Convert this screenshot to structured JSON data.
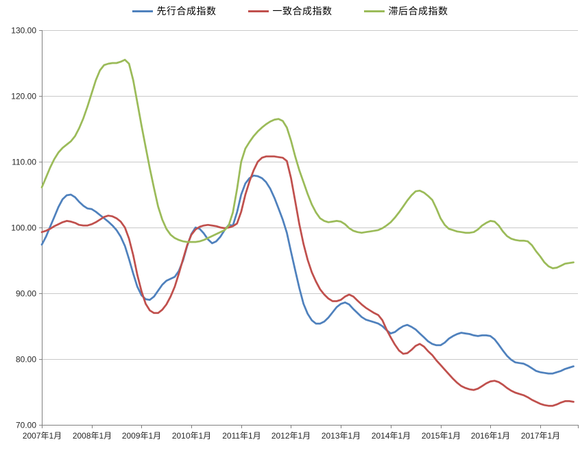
{
  "chart": {
    "title": "",
    "legend_position": "top"
  },
  "chart_data": {
    "type": "line",
    "title": "",
    "xlabel": "",
    "ylabel": "",
    "x_start": "2007-01",
    "x_end": "2017-09",
    "frequency": "monthly",
    "x_tick_labels": [
      "2007年1月",
      "2008年1月",
      "2009年1月",
      "2010年1月",
      "2011年1月",
      "2012年1月",
      "2013年1月",
      "2014年1月",
      "2015年1月",
      "2016年1月",
      "2017年1月"
    ],
    "y_tick_labels": [
      "130.00",
      "120.00",
      "110.00",
      "100.00",
      "90.00",
      "80.00",
      "70.00"
    ],
    "ylim": [
      70,
      130
    ],
    "y_step": 10,
    "grid": true,
    "legend_position": "top",
    "colors": {
      "leading": "#4F81BD",
      "coincident": "#C0504D",
      "lagging": "#9BBB59",
      "gridline": "#C9C9C9",
      "axis": "#808080",
      "text": "#262626"
    },
    "series": [
      {
        "name": "先行合成指数",
        "key": "leading",
        "color": "#4F81BD",
        "values": [
          97.4,
          98.6,
          100.1,
          101.6,
          103.1,
          104.3,
          104.9,
          105.0,
          104.6,
          103.9,
          103.3,
          102.9,
          102.8,
          102.4,
          101.9,
          101.4,
          100.9,
          100.3,
          99.6,
          98.6,
          97.2,
          95.2,
          93.0,
          91.0,
          89.7,
          89.1,
          89.0,
          89.5,
          90.4,
          91.3,
          91.9,
          92.2,
          92.5,
          93.4,
          95.0,
          97.2,
          99.0,
          100.0,
          99.8,
          99.1,
          98.2,
          97.6,
          97.9,
          98.6,
          99.6,
          100.4,
          100.3,
          102.3,
          105.0,
          106.7,
          107.5,
          107.9,
          107.8,
          107.5,
          106.9,
          105.9,
          104.5,
          102.9,
          101.2,
          99.2,
          96.3,
          93.5,
          90.8,
          88.4,
          86.9,
          85.9,
          85.4,
          85.4,
          85.7,
          86.3,
          87.1,
          87.9,
          88.4,
          88.6,
          88.3,
          87.6,
          87.0,
          86.4,
          86.0,
          85.8,
          85.6,
          85.4,
          85.0,
          84.4,
          83.9,
          84.1,
          84.6,
          85.0,
          85.2,
          84.9,
          84.5,
          83.9,
          83.3,
          82.7,
          82.3,
          82.1,
          82.1,
          82.5,
          83.1,
          83.5,
          83.8,
          84.0,
          83.9,
          83.8,
          83.6,
          83.5,
          83.6,
          83.6,
          83.5,
          83.0,
          82.2,
          81.3,
          80.5,
          79.9,
          79.5,
          79.4,
          79.3,
          79.0,
          78.6,
          78.2,
          78.0,
          77.9,
          77.8,
          77.8,
          78.0,
          78.2,
          78.5,
          78.7,
          78.9
        ]
      },
      {
        "name": "一致合成指数",
        "key": "coincident",
        "color": "#C0504D",
        "values": [
          99.3,
          99.5,
          99.8,
          100.2,
          100.5,
          100.8,
          101.0,
          100.9,
          100.7,
          100.4,
          100.3,
          100.3,
          100.5,
          100.8,
          101.2,
          101.6,
          101.8,
          101.7,
          101.4,
          100.9,
          100.0,
          98.3,
          95.8,
          92.8,
          90.3,
          88.4,
          87.4,
          87.0,
          87.0,
          87.5,
          88.3,
          89.5,
          91.0,
          93.0,
          95.2,
          97.3,
          98.9,
          99.7,
          100.1,
          100.3,
          100.4,
          100.3,
          100.2,
          100.0,
          99.9,
          100.0,
          100.2,
          100.6,
          102.4,
          105.0,
          107.0,
          108.7,
          110.0,
          110.6,
          110.8,
          110.8,
          110.8,
          110.7,
          110.6,
          110.1,
          107.5,
          104.0,
          100.5,
          97.5,
          95.1,
          93.2,
          91.8,
          90.6,
          89.8,
          89.2,
          88.8,
          88.8,
          89.0,
          89.5,
          89.8,
          89.5,
          88.9,
          88.3,
          87.8,
          87.4,
          87.0,
          86.7,
          85.9,
          84.5,
          83.3,
          82.2,
          81.3,
          80.8,
          80.9,
          81.4,
          82.0,
          82.3,
          81.9,
          81.2,
          80.6,
          79.8,
          79.1,
          78.4,
          77.7,
          77.0,
          76.4,
          75.9,
          75.6,
          75.4,
          75.3,
          75.5,
          75.9,
          76.3,
          76.6,
          76.7,
          76.5,
          76.1,
          75.6,
          75.2,
          74.9,
          74.7,
          74.5,
          74.2,
          73.8,
          73.5,
          73.2,
          73.0,
          72.9,
          72.9,
          73.1,
          73.4,
          73.6,
          73.6,
          73.5
        ]
      },
      {
        "name": "滞后合成指数",
        "key": "lagging",
        "color": "#9BBB59",
        "values": [
          106.1,
          107.6,
          109.1,
          110.4,
          111.4,
          112.1,
          112.6,
          113.1,
          113.9,
          115.1,
          116.6,
          118.4,
          120.4,
          122.4,
          123.9,
          124.7,
          124.9,
          125.0,
          125.0,
          125.2,
          125.5,
          124.9,
          122.4,
          119.0,
          115.5,
          112.2,
          109.0,
          106.0,
          103.2,
          101.2,
          99.8,
          98.9,
          98.4,
          98.1,
          97.9,
          97.8,
          97.8,
          97.8,
          97.9,
          98.1,
          98.4,
          98.7,
          99.0,
          99.3,
          99.6,
          100.3,
          102.3,
          105.8,
          110.0,
          112.0,
          113.0,
          113.9,
          114.6,
          115.2,
          115.7,
          116.1,
          116.4,
          116.5,
          116.2,
          115.2,
          113.2,
          110.8,
          108.7,
          106.9,
          105.1,
          103.5,
          102.3,
          101.4,
          101.0,
          100.8,
          100.9,
          101.0,
          100.9,
          100.5,
          99.9,
          99.5,
          99.3,
          99.2,
          99.3,
          99.4,
          99.5,
          99.6,
          99.9,
          100.3,
          100.8,
          101.5,
          102.3,
          103.2,
          104.1,
          104.9,
          105.5,
          105.6,
          105.3,
          104.8,
          104.2,
          102.9,
          101.4,
          100.4,
          99.8,
          99.6,
          99.4,
          99.3,
          99.2,
          99.2,
          99.3,
          99.7,
          100.3,
          100.7,
          101.0,
          100.9,
          100.3,
          99.4,
          98.7,
          98.3,
          98.1,
          98.0,
          98.0,
          97.9,
          97.3,
          96.4,
          95.6,
          94.7,
          94.1,
          93.8,
          93.9,
          94.2,
          94.5,
          94.6,
          94.7
        ]
      }
    ]
  }
}
